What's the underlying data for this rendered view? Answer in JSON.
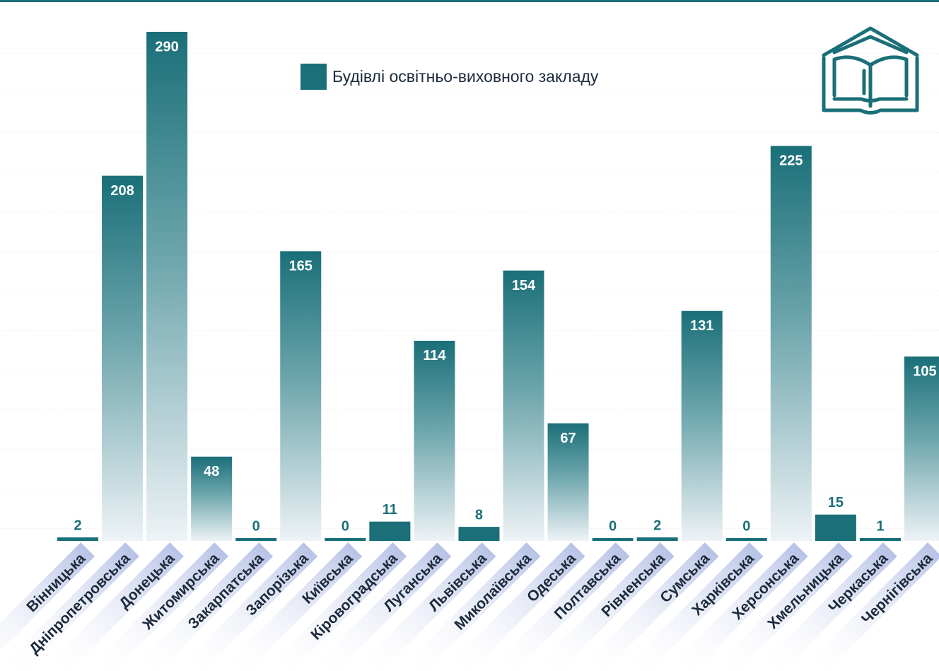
{
  "chart_data": {
    "type": "bar",
    "legend": "Будівлі освітньо-виховного закладу",
    "categories": [
      "Вінницька",
      "Дніпропетровська",
      "Донецька",
      "Житомирська",
      "Закарпатська",
      "Запорізька",
      "Київська",
      "Кіровоградська",
      "Луганська",
      "Львівська",
      "Миколаївська",
      "Одеська",
      "Полтавська",
      "Рівненська",
      "Сумська",
      "Харківська",
      "Херсонська",
      "Хмельницька",
      "Черкаська",
      "Чернігівська"
    ],
    "values": [
      2,
      208,
      290,
      48,
      0,
      165,
      0,
      11,
      114,
      8,
      154,
      67,
      0,
      2,
      131,
      0,
      225,
      15,
      1,
      105
    ],
    "color": "#1a6f78",
    "ylim": [
      0,
      290
    ]
  }
}
